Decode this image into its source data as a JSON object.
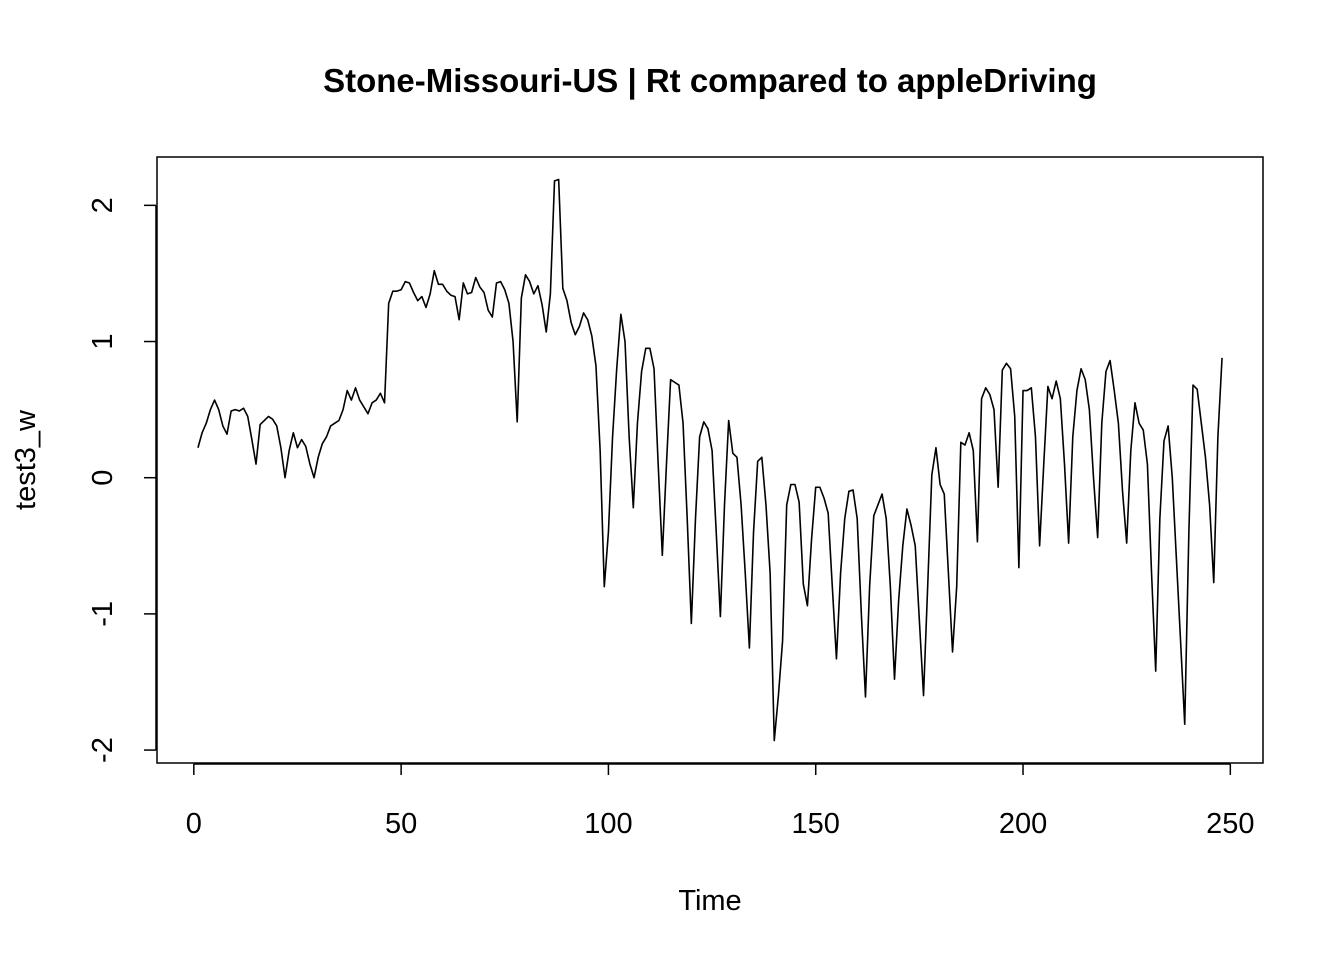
{
  "chart_data": {
    "type": "line",
    "title": "Stone-Missouri-US | Rt compared to appleDriving",
    "xlabel": "Time",
    "ylabel": "test3_w",
    "color": "#000000",
    "xlim": [
      -8.88,
      257.88
    ],
    "ylim": [
      -2.095,
      2.355
    ],
    "xticks": [
      0,
      50,
      100,
      150,
      200,
      250
    ],
    "yticks": [
      -2,
      -1,
      0,
      1,
      2
    ],
    "x": [
      1,
      2,
      3,
      4,
      5,
      6,
      7,
      8,
      9,
      10,
      11,
      12,
      13,
      14,
      15,
      16,
      17,
      18,
      19,
      20,
      21,
      22,
      23,
      24,
      25,
      26,
      27,
      28,
      29,
      30,
      31,
      32,
      33,
      34,
      35,
      36,
      37,
      38,
      39,
      40,
      41,
      42,
      43,
      44,
      45,
      46,
      47,
      48,
      49,
      50,
      51,
      52,
      53,
      54,
      55,
      56,
      57,
      58,
      59,
      60,
      61,
      62,
      63,
      64,
      65,
      66,
      67,
      68,
      69,
      70,
      71,
      72,
      73,
      74,
      75,
      76,
      77,
      78,
      79,
      80,
      81,
      82,
      83,
      84,
      85,
      86,
      87,
      88,
      89,
      90,
      91,
      92,
      93,
      94,
      95,
      96,
      97,
      98,
      99,
      100,
      101,
      102,
      103,
      104,
      105,
      106,
      107,
      108,
      109,
      110,
      111,
      112,
      113,
      114,
      115,
      116,
      117,
      118,
      119,
      120,
      121,
      122,
      123,
      124,
      125,
      126,
      127,
      128,
      129,
      130,
      131,
      132,
      133,
      134,
      135,
      136,
      137,
      138,
      139,
      140,
      141,
      142,
      143,
      144,
      145,
      146,
      147,
      148,
      149,
      150,
      151,
      152,
      153,
      154,
      155,
      156,
      157,
      158,
      159,
      160,
      161,
      162,
      163,
      164,
      165,
      166,
      167,
      168,
      169,
      170,
      171,
      172,
      173,
      174,
      175,
      176,
      177,
      178,
      179,
      180,
      181,
      182,
      183,
      184,
      185,
      186,
      187,
      188,
      189,
      190,
      191,
      192,
      193,
      194,
      195,
      196,
      197,
      198,
      199,
      200,
      201,
      202,
      203,
      204,
      205,
      206,
      207,
      208,
      209,
      210,
      211,
      212,
      213,
      214,
      215,
      216,
      217,
      218,
      219,
      220,
      221,
      222,
      223,
      224,
      225,
      226,
      227,
      228,
      229,
      230,
      231,
      232,
      233,
      234,
      235,
      236,
      237,
      238,
      239,
      240,
      241,
      242,
      243,
      244,
      245,
      246,
      247,
      248
    ],
    "values": [
      0.22,
      0.33,
      0.4,
      0.5,
      0.57,
      0.5,
      0.38,
      0.32,
      0.49,
      0.5,
      0.49,
      0.51,
      0.45,
      0.28,
      0.1,
      0.39,
      0.42,
      0.45,
      0.43,
      0.38,
      0.22,
      0.0,
      0.2,
      0.33,
      0.22,
      0.28,
      0.23,
      0.1,
      0.0,
      0.15,
      0.25,
      0.3,
      0.38,
      0.4,
      0.42,
      0.5,
      0.64,
      0.57,
      0.66,
      0.57,
      0.52,
      0.47,
      0.55,
      0.57,
      0.62,
      0.55,
      1.28,
      1.37,
      1.37,
      1.38,
      1.44,
      1.43,
      1.36,
      1.3,
      1.33,
      1.25,
      1.35,
      1.52,
      1.42,
      1.42,
      1.37,
      1.34,
      1.33,
      1.16,
      1.43,
      1.35,
      1.36,
      1.47,
      1.4,
      1.36,
      1.23,
      1.18,
      1.43,
      1.44,
      1.38,
      1.28,
      1.0,
      0.41,
      1.32,
      1.49,
      1.44,
      1.35,
      1.41,
      1.27,
      1.07,
      1.35,
      2.18,
      2.19,
      1.39,
      1.3,
      1.14,
      1.05,
      1.11,
      1.21,
      1.16,
      1.04,
      0.82,
      0.2,
      -0.8,
      -0.4,
      0.3,
      0.8,
      1.2,
      1.0,
      0.3,
      -0.22,
      0.4,
      0.78,
      0.95,
      0.95,
      0.8,
      0.1,
      -0.57,
      0.1,
      0.72,
      0.7,
      0.68,
      0.4,
      -0.3,
      -1.07,
      -0.3,
      0.3,
      0.41,
      0.36,
      0.2,
      -0.4,
      -1.02,
      -0.2,
      0.42,
      0.18,
      0.15,
      -0.2,
      -0.7,
      -1.25,
      -0.4,
      0.12,
      0.15,
      -0.2,
      -0.7,
      -1.93,
      -1.6,
      -1.2,
      -0.2,
      -0.05,
      -0.05,
      -0.18,
      -0.78,
      -0.94,
      -0.45,
      -0.07,
      -0.07,
      -0.15,
      -0.26,
      -0.8,
      -1.33,
      -0.7,
      -0.3,
      -0.1,
      -0.09,
      -0.3,
      -1.0,
      -1.61,
      -0.8,
      -0.28,
      -0.2,
      -0.12,
      -0.3,
      -0.8,
      -1.48,
      -0.9,
      -0.5,
      -0.23,
      -0.35,
      -0.5,
      -1.05,
      -1.6,
      -0.8,
      0.02,
      0.22,
      -0.05,
      -0.12,
      -0.7,
      -1.28,
      -0.8,
      0.26,
      0.24,
      0.33,
      0.2,
      -0.47,
      0.58,
      0.66,
      0.61,
      0.5,
      -0.07,
      0.79,
      0.84,
      0.8,
      0.45,
      -0.66,
      0.64,
      0.64,
      0.66,
      0.3,
      -0.5,
      0.1,
      0.67,
      0.58,
      0.71,
      0.58,
      0.1,
      -0.48,
      0.3,
      0.64,
      0.8,
      0.72,
      0.5,
      0.0,
      -0.44,
      0.4,
      0.78,
      0.86,
      0.64,
      0.4,
      -0.1,
      -0.48,
      0.2,
      0.55,
      0.4,
      0.35,
      0.1,
      -0.7,
      -1.42,
      -0.3,
      0.27,
      0.38,
      0.0,
      -0.6,
      -1.2,
      -1.81,
      -0.4,
      0.68,
      0.65,
      0.4,
      0.15,
      -0.2,
      -0.77,
      0.3,
      0.88
    ]
  }
}
